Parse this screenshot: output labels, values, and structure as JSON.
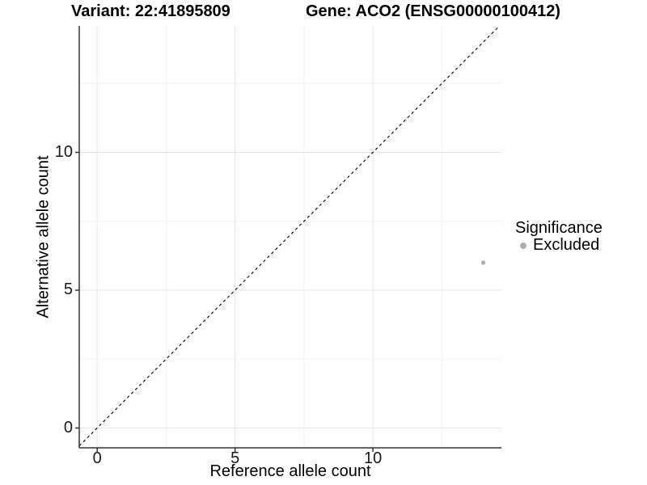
{
  "chart_data": {
    "type": "scatter",
    "titles": {
      "variant": "Variant: 22:41895809",
      "gene": "Gene: ACO2 (ENSG00000100412)"
    },
    "xlabel": "Reference allele count",
    "ylabel": "Alternative allele count",
    "x": {
      "ticks": [
        0,
        5,
        10
      ],
      "minor_ticks": [
        2.5,
        7.5,
        12.5
      ],
      "range": [
        -0.65,
        14.66
      ]
    },
    "y": {
      "ticks": [
        0,
        5,
        10
      ],
      "minor_ticks": [
        2.5,
        7.5,
        12.5
      ],
      "range": [
        -0.72,
        14.59
      ]
    },
    "points": [
      {
        "x": 14,
        "y": 6,
        "significance": "Excluded"
      }
    ],
    "identity_line": {
      "style": "dashed",
      "slope": 1,
      "intercept": 0
    },
    "legend": {
      "title": "Significance",
      "entries": [
        {
          "label": "Excluded",
          "color": "#adadad"
        }
      ]
    },
    "grid": {
      "major": true,
      "minor": true
    },
    "colors": {
      "point": "#adadad",
      "grid_major": "#e6e6e6",
      "grid_minor": "#f2f2f2",
      "axis": "#333333",
      "tick_label": "#1a1a1a",
      "identity_line": "#111111"
    }
  }
}
